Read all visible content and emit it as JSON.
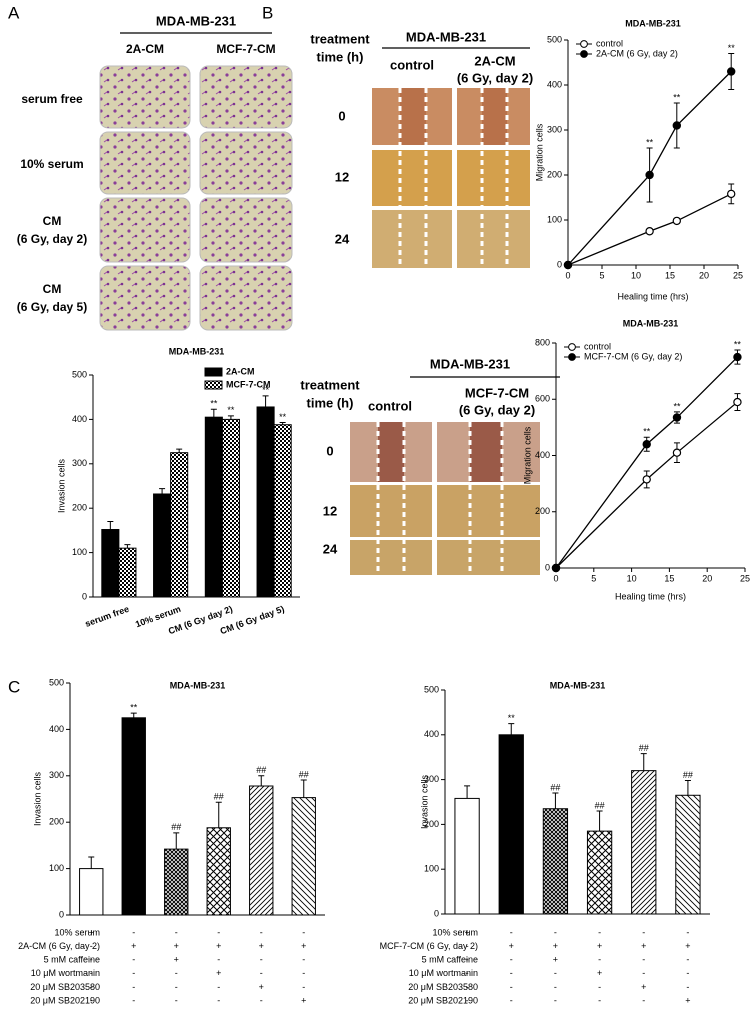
{
  "panels": {
    "a": "A",
    "b": "B",
    "c": "C"
  },
  "invasion_images": {
    "title": "MDA-MB-231",
    "columns": [
      "2A-CM",
      "MCF-7-CM"
    ],
    "rows": [
      [
        "serum free"
      ],
      [
        "10%  serum"
      ],
      [
        "CM",
        "(6 Gy, day 2)"
      ],
      [
        "CM",
        "(6 Gy, day 5)"
      ]
    ]
  },
  "wound_images": [
    {
      "title": "MDA-MB-231",
      "row_header": [
        "treatment",
        "time (h)"
      ],
      "columns": [
        [
          "control"
        ],
        [
          "2A-CM",
          "(6 Gy, day 2)"
        ]
      ],
      "rows": [
        "0",
        "12",
        "24"
      ]
    },
    {
      "title": "MDA-MB-231",
      "row_header": [
        "treatment",
        "time (h)"
      ],
      "columns": [
        [
          "control"
        ],
        [
          "MCF-7-CM",
          "(6 Gy, day 2)"
        ]
      ],
      "rows": [
        "0",
        "12",
        "24"
      ]
    }
  ],
  "chart_data": [
    {
      "type": "bar",
      "title": "MDA-MB-231",
      "ylabel": "Invasion cells",
      "categories": [
        "serum free",
        "10% serum",
        "CM (6 Gy day 2)",
        "CM (6 Gy day 5)"
      ],
      "series": [
        {
          "name": "2A-CM",
          "color": "#000000",
          "pattern": null,
          "values": [
            152,
            232,
            405,
            428
          ],
          "errors": [
            18,
            12,
            18,
            25
          ],
          "annotations": [
            null,
            null,
            "**",
            "**"
          ]
        },
        {
          "name": "MCF-7-CM",
          "color": "#ffffff",
          "pattern": "checker",
          "values": [
            110,
            325,
            400,
            388
          ],
          "errors": [
            8,
            8,
            8,
            5
          ],
          "annotations": [
            null,
            null,
            "**",
            "**"
          ]
        }
      ],
      "ylim": [
        0,
        500
      ],
      "yticks": [
        0,
        100,
        200,
        300,
        400,
        500
      ],
      "legend": "top"
    },
    {
      "type": "line",
      "title": "MDA-MB-231",
      "xlabel": "Healing time (hrs)",
      "ylabel": "Migration cells",
      "x": [
        0,
        12,
        16,
        24
      ],
      "series": [
        {
          "name": "control",
          "color": "#000000",
          "marker": "open",
          "values": [
            0,
            75,
            98,
            158
          ],
          "errors": [
            0,
            5,
            5,
            22
          ],
          "annotations": [
            null,
            null,
            null,
            null
          ]
        },
        {
          "name": "2A-CM (6 Gy, day 2)",
          "color": "#000000",
          "marker": "filled",
          "values": [
            0,
            200,
            310,
            430
          ],
          "errors": [
            0,
            60,
            50,
            40
          ],
          "annotations": [
            null,
            "**",
            "**",
            "**"
          ]
        }
      ],
      "xlim": [
        0,
        25
      ],
      "xticks": [
        0,
        5,
        10,
        15,
        20,
        25
      ],
      "ylim": [
        0,
        500
      ],
      "yticks": [
        0,
        100,
        200,
        300,
        400,
        500
      ],
      "legend": "top-left"
    },
    {
      "type": "line",
      "title": "MDA-MB-231",
      "xlabel": "Healing time (hrs)",
      "ylabel": "Migration cells",
      "x": [
        0,
        12,
        16,
        24
      ],
      "series": [
        {
          "name": "control",
          "color": "#000000",
          "marker": "open",
          "values": [
            0,
            315,
            410,
            590
          ],
          "errors": [
            0,
            30,
            35,
            30
          ],
          "annotations": [
            null,
            null,
            null,
            null
          ]
        },
        {
          "name": "MCF-7-CM (6 Gy, day 2)",
          "color": "#000000",
          "marker": "filled",
          "values": [
            0,
            440,
            535,
            750
          ],
          "errors": [
            0,
            25,
            20,
            25
          ],
          "annotations": [
            null,
            "**",
            "**",
            "**"
          ]
        }
      ],
      "xlim": [
        0,
        25
      ],
      "xticks": [
        0,
        5,
        10,
        15,
        20,
        25
      ],
      "ylim": [
        0,
        800
      ],
      "yticks": [
        0,
        200,
        400,
        600,
        800
      ],
      "legend": "top-left"
    },
    {
      "type": "bar",
      "title": "MDA-MB-231",
      "ylabel": "Invasion cells",
      "values": [
        100,
        425,
        142,
        188,
        278,
        253
      ],
      "errors": [
        25,
        10,
        35,
        55,
        22,
        38
      ],
      "annotations": [
        null,
        "**",
        "##",
        "##",
        "##",
        "##"
      ],
      "colors": [
        "#ffffff",
        "#000000",
        "#ffffff",
        "#ffffff",
        "#ffffff",
        "#ffffff"
      ],
      "patterns": [
        null,
        null,
        "crosshatch-dense",
        "crosshatch",
        "diagonal",
        "back-diagonal"
      ],
      "conditions": [
        {
          "label": "10% serum",
          "marks": [
            "+",
            "-",
            "-",
            "-",
            "-",
            "-"
          ]
        },
        {
          "label": "2A-CM (6 Gy, day 2)",
          "marks": [
            "-",
            "+",
            "+",
            "+",
            "+",
            "+"
          ]
        },
        {
          "label": "5 mM caffeine",
          "marks": [
            "-",
            "-",
            "+",
            "-",
            "-",
            "-"
          ]
        },
        {
          "label": "10 μM wortmanin",
          "marks": [
            "-",
            "-",
            "-",
            "+",
            "-",
            "-"
          ]
        },
        {
          "label": "20 μM SB203580",
          "marks": [
            "-",
            "-",
            "-",
            "-",
            "+",
            "-"
          ]
        },
        {
          "label": "20 μM SB202190",
          "marks": [
            "-",
            "-",
            "-",
            "-",
            "-",
            "+"
          ]
        }
      ],
      "ylim": [
        0,
        500
      ],
      "yticks": [
        0,
        100,
        200,
        300,
        400,
        500
      ]
    },
    {
      "type": "bar",
      "title": "MDA-MB-231",
      "ylabel": "Invasion cells",
      "values": [
        258,
        400,
        235,
        185,
        320,
        265
      ],
      "errors": [
        28,
        25,
        35,
        45,
        38,
        33
      ],
      "annotations": [
        null,
        "**",
        "##",
        "##",
        "##",
        "##"
      ],
      "colors": [
        "#ffffff",
        "#000000",
        "#ffffff",
        "#ffffff",
        "#ffffff",
        "#ffffff"
      ],
      "patterns": [
        null,
        null,
        "crosshatch-dense",
        "crosshatch",
        "diagonal",
        "back-diagonal"
      ],
      "conditions": [
        {
          "label": "10% serum",
          "marks": [
            "+",
            "-",
            "-",
            "-",
            "-",
            "-"
          ]
        },
        {
          "label": "MCF-7-CM (6 Gy, day 2)",
          "marks": [
            "-",
            "+",
            "+",
            "+",
            "+",
            "+"
          ]
        },
        {
          "label": "5 mM caffeine",
          "marks": [
            "-",
            "-",
            "+",
            "-",
            "-",
            "-"
          ]
        },
        {
          "label": "10 μM wortmanin",
          "marks": [
            "-",
            "-",
            "-",
            "+",
            "-",
            "-"
          ]
        },
        {
          "label": "20 μM SB203580",
          "marks": [
            "-",
            "-",
            "-",
            "-",
            "+",
            "-"
          ]
        },
        {
          "label": "20 μM SB202190",
          "marks": [
            "-",
            "-",
            "-",
            "-",
            "-",
            "+"
          ]
        }
      ],
      "ylim": [
        0,
        500
      ],
      "yticks": [
        0,
        100,
        200,
        300,
        400,
        500
      ]
    }
  ]
}
